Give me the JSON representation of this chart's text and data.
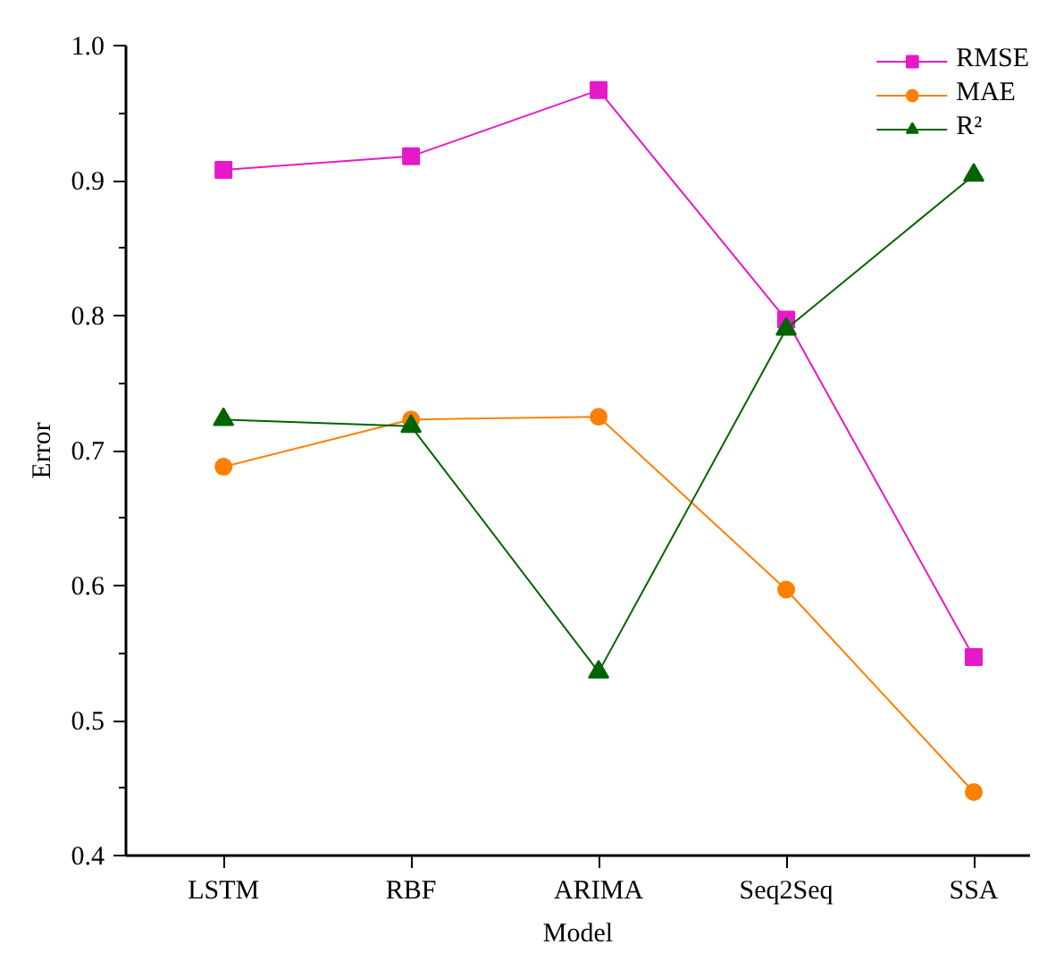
{
  "chart_data": {
    "type": "line",
    "xlabel": "Model",
    "ylabel": "Error",
    "categories": [
      "LSTM",
      "RBF",
      "ARIMA",
      "Seq2Seq",
      "SSA"
    ],
    "series": [
      {
        "name": "RMSE",
        "color": "#e619c8",
        "marker": "square",
        "values": [
          0.908,
          0.918,
          0.967,
          0.797,
          0.547
        ]
      },
      {
        "name": "MAE",
        "color": "#ff8000",
        "marker": "circle",
        "values": [
          0.688,
          0.723,
          0.725,
          0.597,
          0.447
        ]
      },
      {
        "name": "R²",
        "color": "#006400",
        "marker": "triangle",
        "values": [
          0.723,
          0.718,
          0.536,
          0.79,
          0.904
        ]
      }
    ],
    "ylim": [
      0.4,
      1.0
    ],
    "yticks": [
      0.4,
      0.5,
      0.6,
      0.7,
      0.8,
      0.9,
      {
        "value": 1,
        "label": "1.0"
      }
    ],
    "grid": false,
    "legend": "top right",
    "line_style": "solid"
  }
}
